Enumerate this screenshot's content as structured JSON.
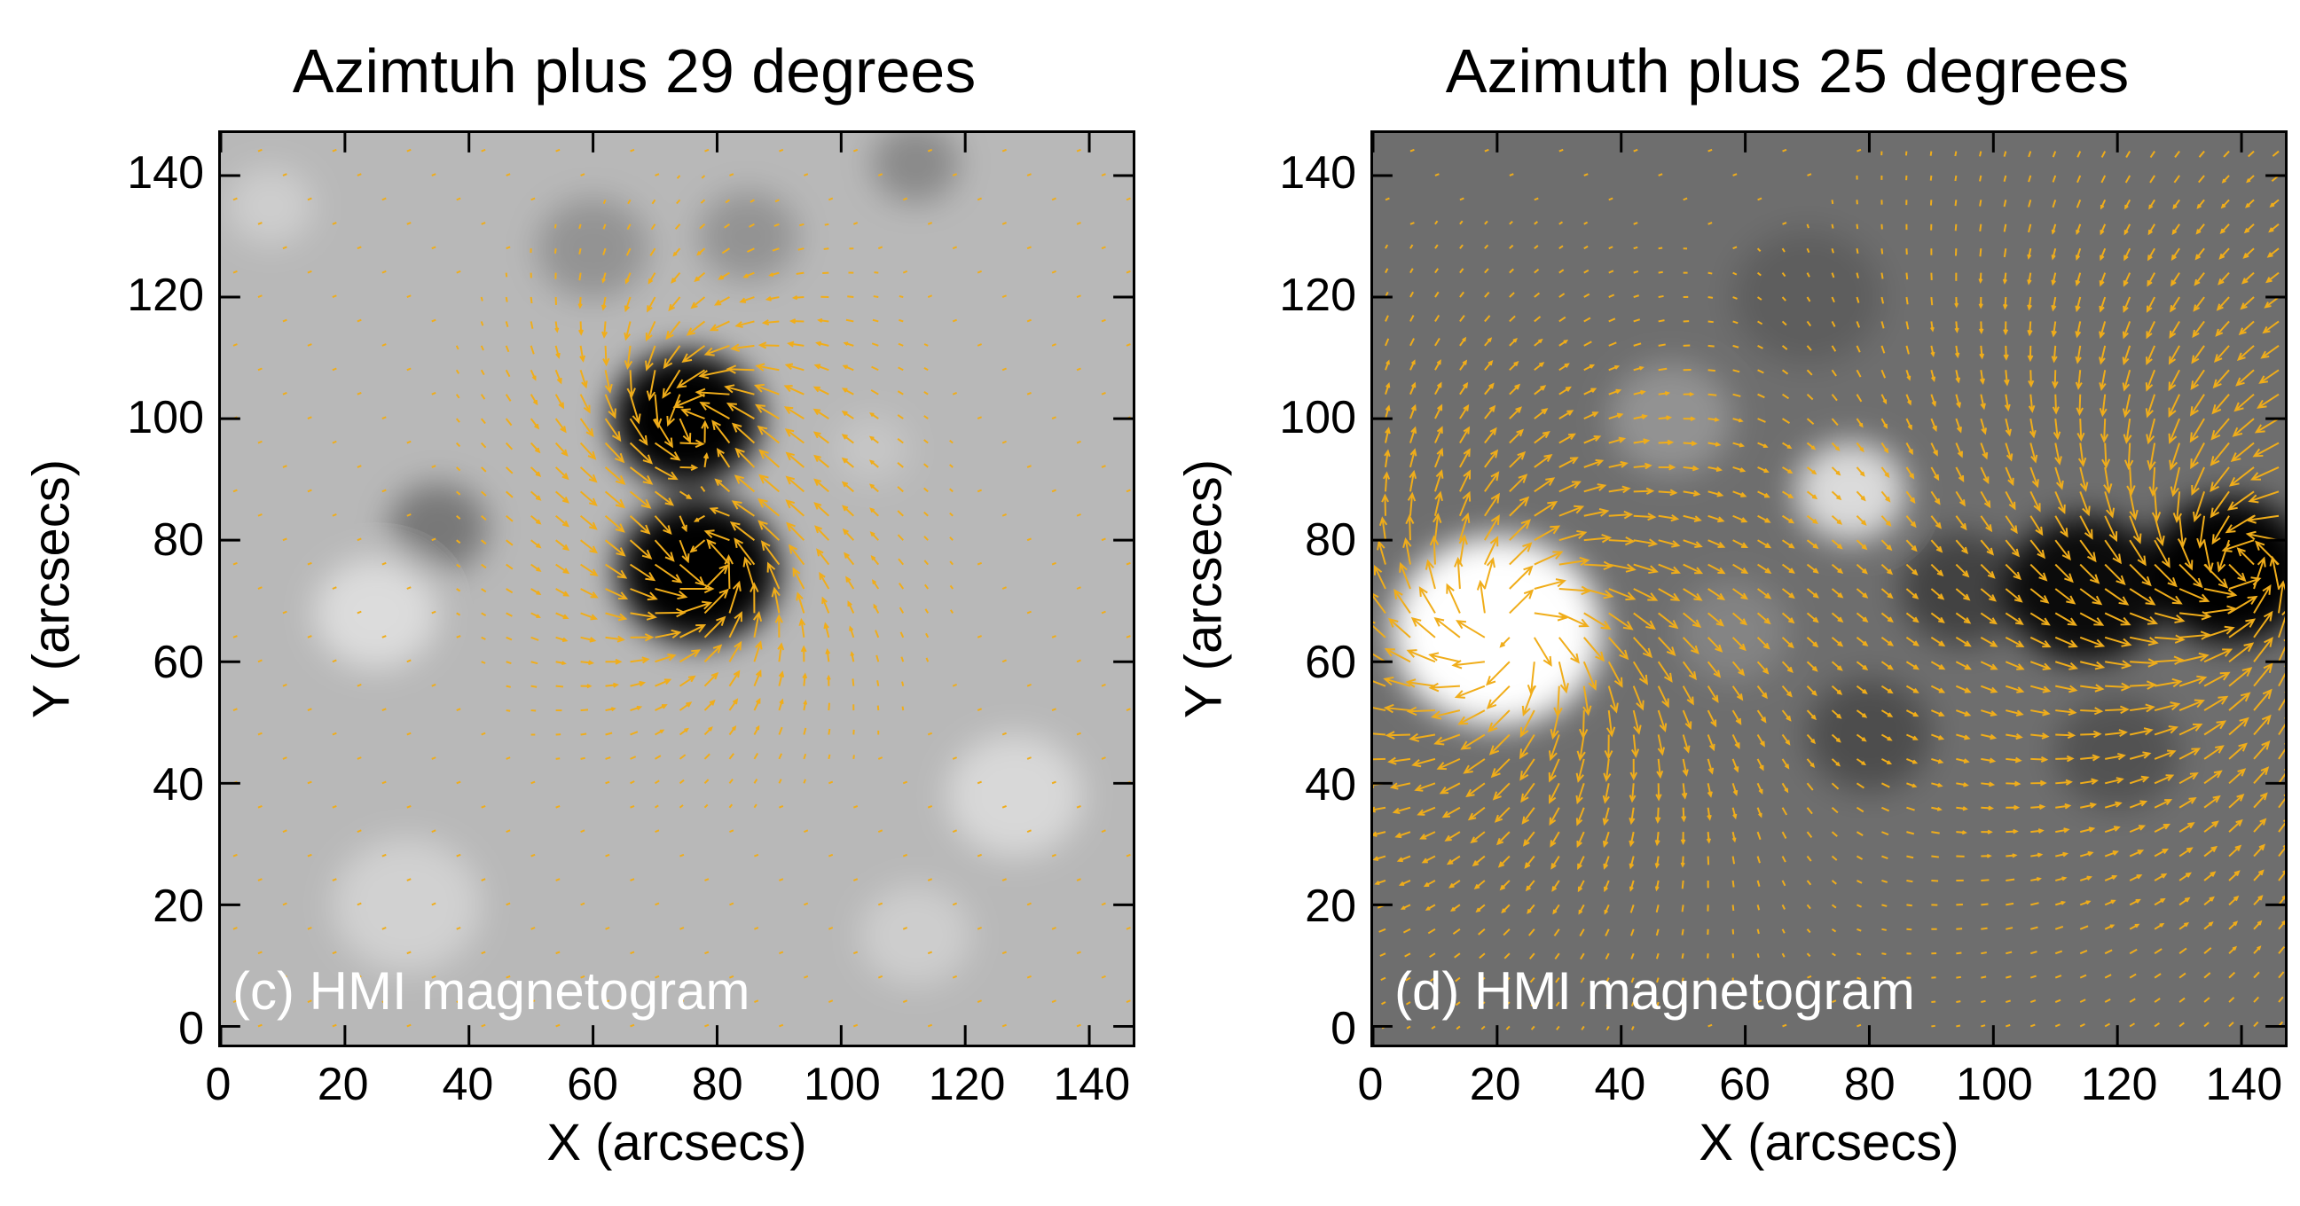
{
  "chart_data": [
    {
      "type": "heatmap",
      "id": "c",
      "title": "Azimtuh plus 29 degrees",
      "xlabel": "X (arcsecs)",
      "ylabel": "Y (arcsecs)",
      "panel_label": "(c) HMI magnetogram",
      "xlim": [
        0,
        147
      ],
      "ylim": [
        -3,
        147
      ],
      "xticks": [
        0,
        20,
        40,
        60,
        80,
        100,
        120,
        140
      ],
      "yticks": [
        0,
        20,
        40,
        60,
        80,
        100,
        120,
        140
      ],
      "background_gray": "#b8b8b8",
      "blobs": [
        {
          "x": 75,
          "y": 100,
          "r": 12,
          "polarity": "negative",
          "strength": 1.0
        },
        {
          "x": 77,
          "y": 75,
          "r": 13,
          "polarity": "negative",
          "strength": 1.0
        },
        {
          "x": 35,
          "y": 82,
          "r": 8,
          "polarity": "negative",
          "strength": 0.35
        },
        {
          "x": 60,
          "y": 128,
          "r": 9,
          "polarity": "negative",
          "strength": 0.2
        },
        {
          "x": 85,
          "y": 130,
          "r": 8,
          "polarity": "negative",
          "strength": 0.2
        },
        {
          "x": 112,
          "y": 142,
          "r": 7,
          "polarity": "negative",
          "strength": 0.25
        },
        {
          "x": 25,
          "y": 68,
          "r": 10,
          "polarity": "positive",
          "strength": 0.5
        },
        {
          "x": 30,
          "y": 20,
          "r": 12,
          "polarity": "positive",
          "strength": 0.35
        },
        {
          "x": 128,
          "y": 38,
          "r": 11,
          "polarity": "positive",
          "strength": 0.45
        },
        {
          "x": 112,
          "y": 15,
          "r": 9,
          "polarity": "positive",
          "strength": 0.3
        },
        {
          "x": 8,
          "y": 135,
          "r": 7,
          "polarity": "positive",
          "strength": 0.3
        },
        {
          "x": 105,
          "y": 95,
          "r": 6,
          "polarity": "positive",
          "strength": 0.2
        }
      ],
      "vortices": [
        {
          "x": 76,
          "y": 100,
          "r": 14,
          "mode": "converge",
          "sense": 1
        },
        {
          "x": 78,
          "y": 75,
          "r": 14,
          "mode": "converge",
          "sense": 1
        }
      ]
    },
    {
      "type": "heatmap",
      "id": "d",
      "title": "Azimuth plus 25 degrees",
      "xlabel": "X (arcsecs)",
      "ylabel": "Y (arcsecs)",
      "panel_label": "(d) HMI magnetogram",
      "xlim": [
        0,
        147
      ],
      "ylim": [
        -3,
        147
      ],
      "xticks": [
        0,
        20,
        40,
        60,
        80,
        100,
        120,
        140
      ],
      "yticks": [
        0,
        20,
        40,
        60,
        80,
        100,
        120,
        140
      ],
      "background_gray": "#6e6e6e",
      "blobs": [
        {
          "x": 20,
          "y": 65,
          "r": 17,
          "polarity": "positive",
          "strength": 1.0
        },
        {
          "x": 77,
          "y": 88,
          "r": 9,
          "polarity": "positive",
          "strength": 0.75
        },
        {
          "x": 48,
          "y": 100,
          "r": 10,
          "polarity": "positive",
          "strength": 0.25
        },
        {
          "x": 58,
          "y": 65,
          "r": 9,
          "polarity": "positive",
          "strength": 0.15
        },
        {
          "x": 115,
          "y": 72,
          "r": 13,
          "polarity": "negative",
          "strength": 0.9
        },
        {
          "x": 138,
          "y": 75,
          "r": 13,
          "polarity": "negative",
          "strength": 1.0
        },
        {
          "x": 95,
          "y": 72,
          "r": 10,
          "polarity": "negative",
          "strength": 0.4
        },
        {
          "x": 80,
          "y": 48,
          "r": 10,
          "polarity": "negative",
          "strength": 0.3
        },
        {
          "x": 120,
          "y": 45,
          "r": 10,
          "polarity": "negative",
          "strength": 0.25
        },
        {
          "x": 70,
          "y": 120,
          "r": 12,
          "polarity": "negative",
          "strength": 0.15
        }
      ],
      "vortices": [
        {
          "x": 22,
          "y": 65,
          "r": 24,
          "mode": "diverge",
          "sense": -1
        },
        {
          "x": 140,
          "y": 76,
          "r": 32,
          "mode": "converge",
          "sense": 1
        }
      ]
    }
  ]
}
